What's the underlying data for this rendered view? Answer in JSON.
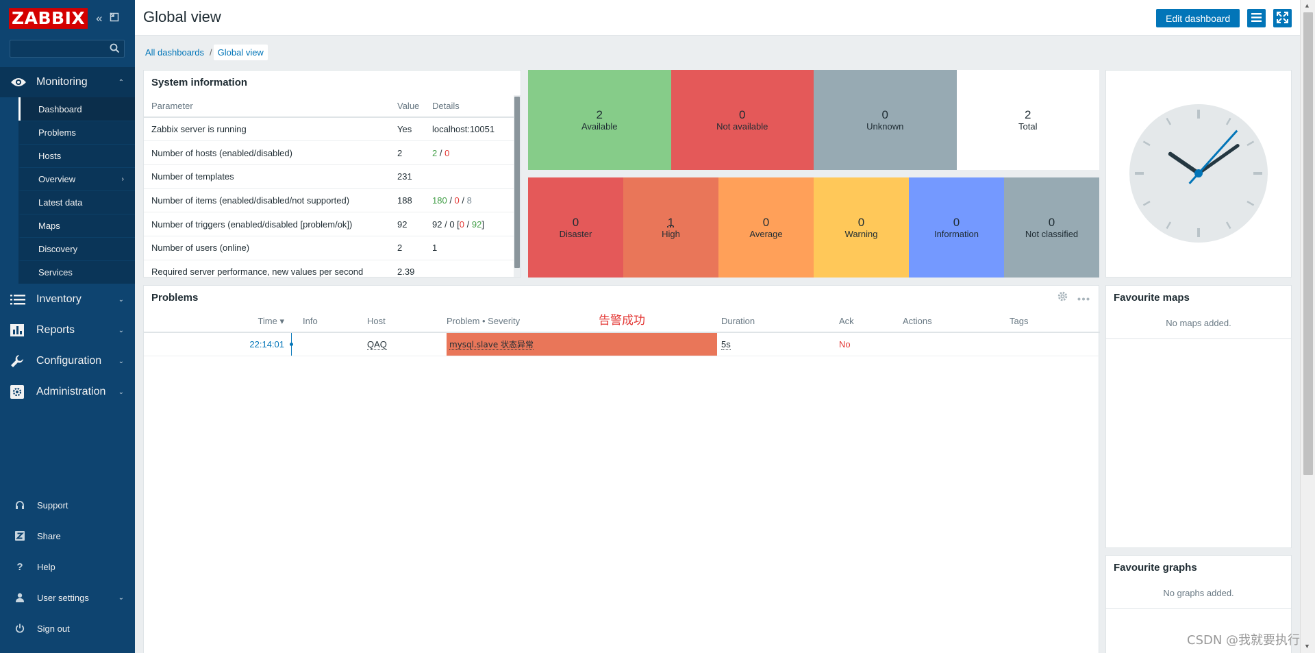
{
  "sidebar": {
    "logo": "ZABBIX",
    "search": {
      "placeholder": "",
      "value": ""
    },
    "sections": {
      "monitoring": "Monitoring",
      "inventory": "Inventory",
      "reports": "Reports",
      "configuration": "Configuration",
      "administration": "Administration"
    },
    "monitoring_items": [
      "Dashboard",
      "Problems",
      "Hosts",
      "Overview",
      "Latest data",
      "Maps",
      "Discovery",
      "Services"
    ],
    "bottom": {
      "support": "Support",
      "share": "Share",
      "help": "Help",
      "user_settings": "User settings",
      "sign_out": "Sign out"
    }
  },
  "header": {
    "title": "Global view",
    "edit_button": "Edit dashboard"
  },
  "breadcrumbs": [
    "All dashboards",
    "Global view"
  ],
  "system_info": {
    "title": "System information",
    "columns": [
      "Parameter",
      "Value",
      "Details"
    ],
    "rows": [
      {
        "param": "Zabbix server is running",
        "value": "Yes",
        "details": "localhost:10051"
      },
      {
        "param": "Number of hosts (enabled/disabled)",
        "value": "2",
        "details": {
          "a": "2",
          "b": "0"
        }
      },
      {
        "param": "Number of templates",
        "value": "231",
        "details": ""
      },
      {
        "param": "Number of items (enabled/disabled/not supported)",
        "value": "188",
        "details": {
          "a": "180",
          "b": "0",
          "c": "8"
        }
      },
      {
        "param": "Number of triggers (enabled/disabled [problem/ok])",
        "value": "92",
        "details": {
          "a": "92",
          "b": "0",
          "c": "0",
          "d": "92"
        }
      },
      {
        "param": "Number of users (online)",
        "value": "2",
        "details": "1"
      },
      {
        "param": "Required server performance, new values per second",
        "value": "2.39",
        "details": ""
      }
    ]
  },
  "availability": [
    {
      "count": "2",
      "label": "Available",
      "color": "#86cc89",
      "text_color": "#1f2c33"
    },
    {
      "count": "0",
      "label": "Not available",
      "color": "#e45959",
      "text_color": "#1f2c33"
    },
    {
      "count": "0",
      "label": "Unknown",
      "color": "#97aab3",
      "text_color": "#1f2c33"
    },
    {
      "count": "2",
      "label": "Total",
      "color": "#ffffff",
      "text_color": "#1f2c33"
    }
  ],
  "severities": [
    {
      "count": "0",
      "label": "Disaster",
      "color": "#e45959"
    },
    {
      "count": "1",
      "label": "High",
      "color": "#e97659"
    },
    {
      "count": "0",
      "label": "Average",
      "color": "#ffa059"
    },
    {
      "count": "0",
      "label": "Warning",
      "color": "#ffc859"
    },
    {
      "count": "0",
      "label": "Information",
      "color": "#7499ff"
    },
    {
      "count": "0",
      "label": "Not classified",
      "color": "#97aab3"
    }
  ],
  "problems": {
    "title": "Problems",
    "annotation": "告警成功",
    "columns": {
      "time": "Time ▾",
      "info": "Info",
      "host": "Host",
      "problem": "Problem • Severity",
      "duration": "Duration",
      "ack": "Ack",
      "actions": "Actions",
      "tags": "Tags"
    },
    "rows": [
      {
        "time": "22:14:01",
        "info": "",
        "host": "QAQ",
        "problem": "mysql.slave 状态异常",
        "duration": "5s",
        "ack": "No",
        "actions": "",
        "tags": ""
      }
    ]
  },
  "fav_maps": {
    "title": "Favourite maps",
    "empty": "No maps added."
  },
  "fav_graphs": {
    "title": "Favourite graphs",
    "empty": "No graphs added."
  },
  "watermark": "CSDN @我就要执行",
  "colors": {
    "sidebar": "#0e4470",
    "accent": "#0275b8",
    "high": "#e97659"
  },
  "clock": {
    "hour": 10,
    "minute": 9,
    "second": 7
  }
}
